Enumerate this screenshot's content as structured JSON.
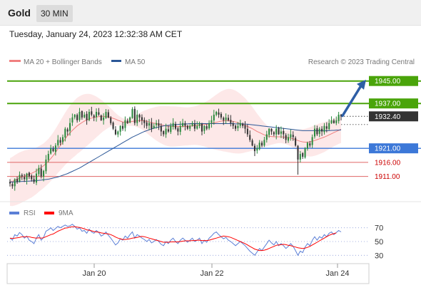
{
  "header": {
    "title": "Gold",
    "timeframe": "30 MIN"
  },
  "timestamp": "Tuesday, January 24, 2023 12:32:38 AM CET",
  "colors": {
    "up_candle": "#2b8a3e",
    "down_candle": "#333333",
    "bollinger_fill": "#fde4e4",
    "ma20": "#f08080",
    "ma50": "#2b5797",
    "resistance": "#4aa40a",
    "pivot": "#3c78d8",
    "support": "#e06666",
    "support_text": "#cc0000",
    "current": "#333333",
    "arrow": "#2e5ea6",
    "rsi": "#5b7fd6",
    "rsi_ma": "#ff0000"
  },
  "chart_data": [
    {
      "type": "candlestick",
      "title": "Gold",
      "legend": [
        {
          "name": "MA 20 + Bollinger Bands",
          "color": "#f08080"
        },
        {
          "name": "MA 50",
          "color": "#2b5797"
        }
      ],
      "source": "Research © 2023 Trading Central",
      "x_ticks": [
        "Jan 20",
        "Jan 22",
        "Jan 24"
      ],
      "ylim": [
        1902,
        1950
      ],
      "levels": [
        {
          "value": 1945.0,
          "label": "1945.00",
          "kind": "target"
        },
        {
          "value": 1937.0,
          "label": "1937.00",
          "kind": "resistance"
        },
        {
          "value": 1932.4,
          "label": "1932.40",
          "kind": "current"
        },
        {
          "value": 1921.0,
          "label": "1921.00",
          "kind": "pivot"
        },
        {
          "value": 1916.0,
          "label": "1916.00",
          "kind": "support"
        },
        {
          "value": 1911.0,
          "label": "1911.00",
          "kind": "support"
        }
      ],
      "close": [
        1908.5,
        1907.5,
        1910,
        1909,
        1911.5,
        1911,
        1910,
        1912,
        1911,
        1910,
        1909,
        1912,
        1914,
        1911,
        1913,
        1917,
        1919,
        1921,
        1920,
        1922,
        1924,
        1923,
        1925,
        1928,
        1927,
        1930,
        1932,
        1933,
        1931,
        1934,
        1932,
        1933,
        1931,
        1934,
        1933,
        1932,
        1934,
        1933,
        1931,
        1932,
        1934,
        1932,
        1930,
        1928,
        1926,
        1927,
        1929,
        1928,
        1931,
        1930,
        1932,
        1935,
        1930,
        1933,
        1932,
        1931,
        1930,
        1929,
        1930,
        1928,
        1929,
        1930,
        1929,
        1927,
        1926,
        1928,
        1927,
        1929,
        1930,
        1928,
        1927,
        1929,
        1930,
        1929,
        1928,
        1929,
        1930,
        1928,
        1929,
        1930,
        1927,
        1929,
        1928,
        1930,
        1931,
        1933,
        1934,
        1933,
        1932,
        1931,
        1932,
        1931,
        1930,
        1929,
        1928,
        1929,
        1930,
        1929,
        1928,
        1926,
        1924,
        1922,
        1920,
        1921,
        1923,
        1922,
        1924,
        1926,
        1928,
        1927,
        1926,
        1928,
        1926,
        1927,
        1926,
        1924,
        1925,
        1926,
        1925,
        1922,
        1917,
        1919,
        1918,
        1921,
        1923,
        1922,
        1925,
        1928,
        1926,
        1928,
        1927,
        1929,
        1928,
        1930,
        1931,
        1930,
        1931,
        1933,
        1932.4
      ],
      "ma20": [
        1909,
        1909.2,
        1909.6,
        1910,
        1910.4,
        1910.8,
        1911.2,
        1911.5,
        1911.8,
        1912.1,
        1912.5,
        1913,
        1913.6,
        1914.2,
        1914.8,
        1915.6,
        1916.4,
        1917.4,
        1918.4,
        1919.6,
        1920.8,
        1922,
        1923.2,
        1924.4,
        1925.5,
        1926.5,
        1927.4,
        1928.2,
        1929,
        1929.6,
        1930.2,
        1930.7,
        1931.1,
        1931.5,
        1931.8,
        1932,
        1932.2,
        1932.3,
        1932.4,
        1932.4,
        1932.3,
        1932.2,
        1932,
        1931.7,
        1931.4,
        1931,
        1930.7,
        1930.4,
        1930.3,
        1930.3,
        1930.4,
        1930.6,
        1930.7,
        1930.8,
        1930.9,
        1930.9,
        1930.8,
        1930.6,
        1930.4,
        1930.2,
        1930,
        1929.8,
        1929.6,
        1929.4,
        1929.2,
        1929,
        1928.9,
        1928.8,
        1928.8,
        1928.8,
        1928.8,
        1928.8,
        1928.8,
        1928.8,
        1928.8,
        1928.9,
        1929,
        1929.1,
        1929.2,
        1929.3,
        1929.4,
        1929.5,
        1929.6,
        1929.7,
        1929.9,
        1930.1,
        1930.3,
        1930.5,
        1930.7,
        1930.8,
        1930.9,
        1930.9,
        1930.8,
        1930.6,
        1930.4,
        1930.1,
        1929.8,
        1929.5,
        1929.2,
        1928.8,
        1928.4,
        1928,
        1927.5,
        1927,
        1926.6,
        1926.2,
        1925.8,
        1925.5,
        1925.3,
        1925.2,
        1925.1,
        1925.1,
        1925.1,
        1925.1,
        1925,
        1924.9,
        1924.8,
        1924.6,
        1924.4,
        1924.1,
        1923.8,
        1923.5,
        1923.3,
        1923.2,
        1923.2,
        1923.3,
        1923.5,
        1923.8,
        1924.1,
        1924.4,
        1924.7,
        1925,
        1925.4,
        1925.8,
        1926.2,
        1926.6,
        1927,
        1927.4,
        1927.8
      ],
      "ma50": [
        1909,
        1909,
        1909,
        1909.1,
        1909.1,
        1909.2,
        1909.2,
        1909.3,
        1909.3,
        1909.4,
        1909.4,
        1909.5,
        1909.6,
        1909.7,
        1909.8,
        1909.9,
        1910,
        1910.2,
        1910.4,
        1910.6,
        1910.8,
        1911.1,
        1911.4,
        1911.7,
        1912,
        1912.4,
        1912.8,
        1913.2,
        1913.6,
        1914,
        1914.5,
        1915,
        1915.5,
        1916,
        1916.5,
        1917,
        1917.5,
        1918,
        1918.5,
        1919,
        1919.5,
        1920,
        1920.5,
        1921,
        1921.5,
        1922,
        1922.5,
        1923,
        1923.5,
        1924,
        1924.5,
        1925,
        1925.4,
        1925.8,
        1926.2,
        1926.6,
        1927,
        1927.3,
        1927.6,
        1927.9,
        1928.2,
        1928.4,
        1928.6,
        1928.8,
        1929,
        1929.1,
        1929.2,
        1929.3,
        1929.4,
        1929.5,
        1929.5,
        1929.6,
        1929.6,
        1929.7,
        1929.7,
        1929.8,
        1929.8,
        1929.8,
        1929.8,
        1929.8,
        1929.8,
        1929.8,
        1929.8,
        1929.8,
        1929.8,
        1929.8,
        1929.8,
        1929.8,
        1929.8,
        1929.8,
        1929.8,
        1929.8,
        1929.8,
        1929.8,
        1929.7,
        1929.7,
        1929.7,
        1929.7,
        1929.6,
        1929.6,
        1929.5,
        1929.4,
        1929.3,
        1929.2,
        1929.1,
        1929,
        1928.9,
        1928.8,
        1928.7,
        1928.6,
        1928.5,
        1928.4,
        1928.3,
        1928.2,
        1928.1,
        1928,
        1927.9,
        1927.8,
        1927.7,
        1927.6,
        1927.5,
        1927.4,
        1927.3,
        1927.3,
        1927.3,
        1927.3,
        1927.3,
        1927.3,
        1927.3,
        1927.3,
        1927.3,
        1927.3,
        1927.3,
        1927.3,
        1927.4,
        1927.4,
        1927.5,
        1927.5,
        1927.6
      ]
    },
    {
      "type": "line",
      "legend": [
        {
          "name": "RSI",
          "color": "#5b7fd6"
        },
        {
          "name": "9MA",
          "color": "#ff0000"
        }
      ],
      "y_ticks": [
        70,
        50,
        30
      ],
      "ylim": [
        20,
        80
      ],
      "rsi": [
        55,
        52,
        60,
        58,
        63,
        60,
        55,
        58,
        52,
        50,
        47,
        55,
        60,
        52,
        56,
        65,
        67,
        70,
        66,
        69,
        72,
        70,
        72,
        74,
        72,
        73,
        75,
        72,
        68,
        70,
        65,
        66,
        62,
        68,
        64,
        62,
        66,
        63,
        58,
        60,
        64,
        59,
        55,
        50,
        45,
        48,
        54,
        52,
        58,
        55,
        60,
        64,
        55,
        60,
        58,
        55,
        53,
        50,
        53,
        48,
        50,
        53,
        50,
        46,
        44,
        50,
        47,
        52,
        55,
        50,
        47,
        52,
        55,
        52,
        49,
        52,
        55,
        50,
        52,
        55,
        47,
        52,
        49,
        55,
        58,
        62,
        64,
        60,
        57,
        54,
        56,
        52,
        50,
        47,
        44,
        47,
        50,
        47,
        44,
        40,
        36,
        33,
        30,
        35,
        40,
        37,
        42,
        47,
        52,
        48,
        45,
        50,
        44,
        47,
        44,
        40,
        43,
        47,
        43,
        37,
        30,
        36,
        34,
        42,
        47,
        44,
        52,
        57,
        52,
        57,
        55,
        60,
        57,
        62,
        64,
        60,
        63,
        66,
        64
      ],
      "ma9": [
        55,
        54.5,
        55,
        55.5,
        56,
        57,
        57,
        57,
        57,
        56,
        55.5,
        55,
        55.5,
        55,
        55.5,
        57,
        58.5,
        60,
        61,
        63,
        65,
        66.5,
        68,
        69.5,
        70,
        71,
        71.5,
        71.5,
        71,
        70.5,
        69.5,
        68.5,
        67,
        66.5,
        65.5,
        64.5,
        64,
        63.5,
        62.5,
        62,
        61.5,
        61,
        60,
        58.5,
        56.5,
        55,
        54,
        53,
        53,
        53.5,
        54,
        55,
        55.5,
        56,
        57,
        57.5,
        57,
        56,
        55,
        54,
        53,
        52,
        51,
        50,
        49,
        49,
        49,
        49.5,
        49.5,
        49.5,
        49.5,
        50,
        50.5,
        51,
        51,
        51,
        51.5,
        51.5,
        52,
        52,
        51.5,
        51.5,
        51.5,
        52,
        53,
        54,
        55,
        56,
        57,
        58,
        57.5,
        57,
        56,
        54.5,
        53,
        51.5,
        50,
        48.5,
        47,
        45,
        43,
        41,
        39,
        38,
        37,
        37,
        37.5,
        38.5,
        40,
        41.5,
        43,
        44.5,
        45,
        45.5,
        46,
        45.5,
        44.5,
        44,
        43,
        42,
        41,
        40.5,
        40,
        40.5,
        41.5,
        43,
        45,
        47,
        49,
        51,
        53,
        55,
        57,
        59,
        60.5,
        61.5,
        62.5
      ]
    }
  ]
}
